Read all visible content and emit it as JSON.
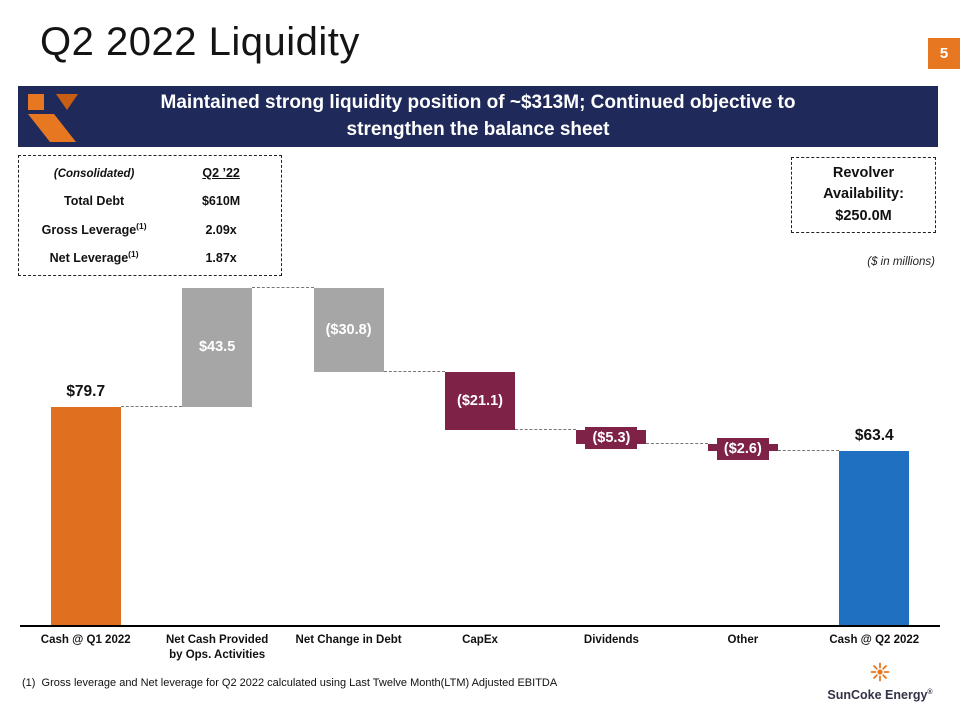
{
  "slide": {
    "title": "Q2 2022 Liquidity",
    "page_number": "5"
  },
  "banner": {
    "text": "Maintained strong liquidity position of ~$313M; Continued objective to strengthen the balance sheet"
  },
  "metrics_table": {
    "header": {
      "label": "(Consolidated)",
      "value": "Q2 ’22"
    },
    "rows": [
      {
        "label": "Total Debt",
        "sup": "",
        "value": "$610M"
      },
      {
        "label": "Gross Leverage",
        "sup": "(1)",
        "value": "2.09x"
      },
      {
        "label": "Net Leverage",
        "sup": "(1)",
        "value": "1.87x"
      }
    ]
  },
  "revolver_box": {
    "text": "Revolver Availability: $250.0M"
  },
  "units_note": "($ in millions)",
  "chart_data": {
    "type": "bar",
    "subtype": "waterfall",
    "title": "Q2 2022 liquidity walk, $ in millions",
    "categories": [
      "Cash @ Q1 2022",
      "Net Cash Provided\nby Ops. Activities",
      "Net Change in Debt",
      "CapEx",
      "Dividends",
      "Other",
      "Cash @ Q2 2022"
    ],
    "values": [
      79.7,
      43.5,
      -30.8,
      -21.1,
      -5.3,
      -2.6,
      63.4
    ],
    "labels": [
      "$79.7",
      "$43.5",
      "($30.8)",
      "($21.1)",
      "($5.3)",
      "($2.6)",
      "$63.4"
    ],
    "bar_types": [
      "total",
      "delta",
      "delta",
      "delta",
      "delta",
      "delta",
      "total"
    ],
    "bar_colors": [
      "#E0701F",
      "#A6A6A6",
      "#A6A6A6",
      "#7E2248",
      "#7E2248",
      "#7E2248",
      "#1F70C1"
    ],
    "label_positions": [
      "above",
      "inside",
      "inside",
      "inside",
      "inside",
      "inside",
      "above"
    ],
    "ylim": [
      0,
      126
    ],
    "grid": false,
    "legend": false,
    "connectors": "dashed"
  },
  "footnote": "(1)  Gross leverage and Net leverage for Q2 2022 calculated using Last Twelve Month(LTM) Adjusted EBITDA",
  "brand": {
    "name": "SunCoke Energy",
    "registered": "®"
  },
  "colors": {
    "accent_orange": "#E87722",
    "banner_navy": "#1F2A5B",
    "bar_orange": "#E0701F",
    "bar_gray": "#A6A6A6",
    "bar_maroon": "#7E2248",
    "bar_blue": "#1F70C1"
  }
}
